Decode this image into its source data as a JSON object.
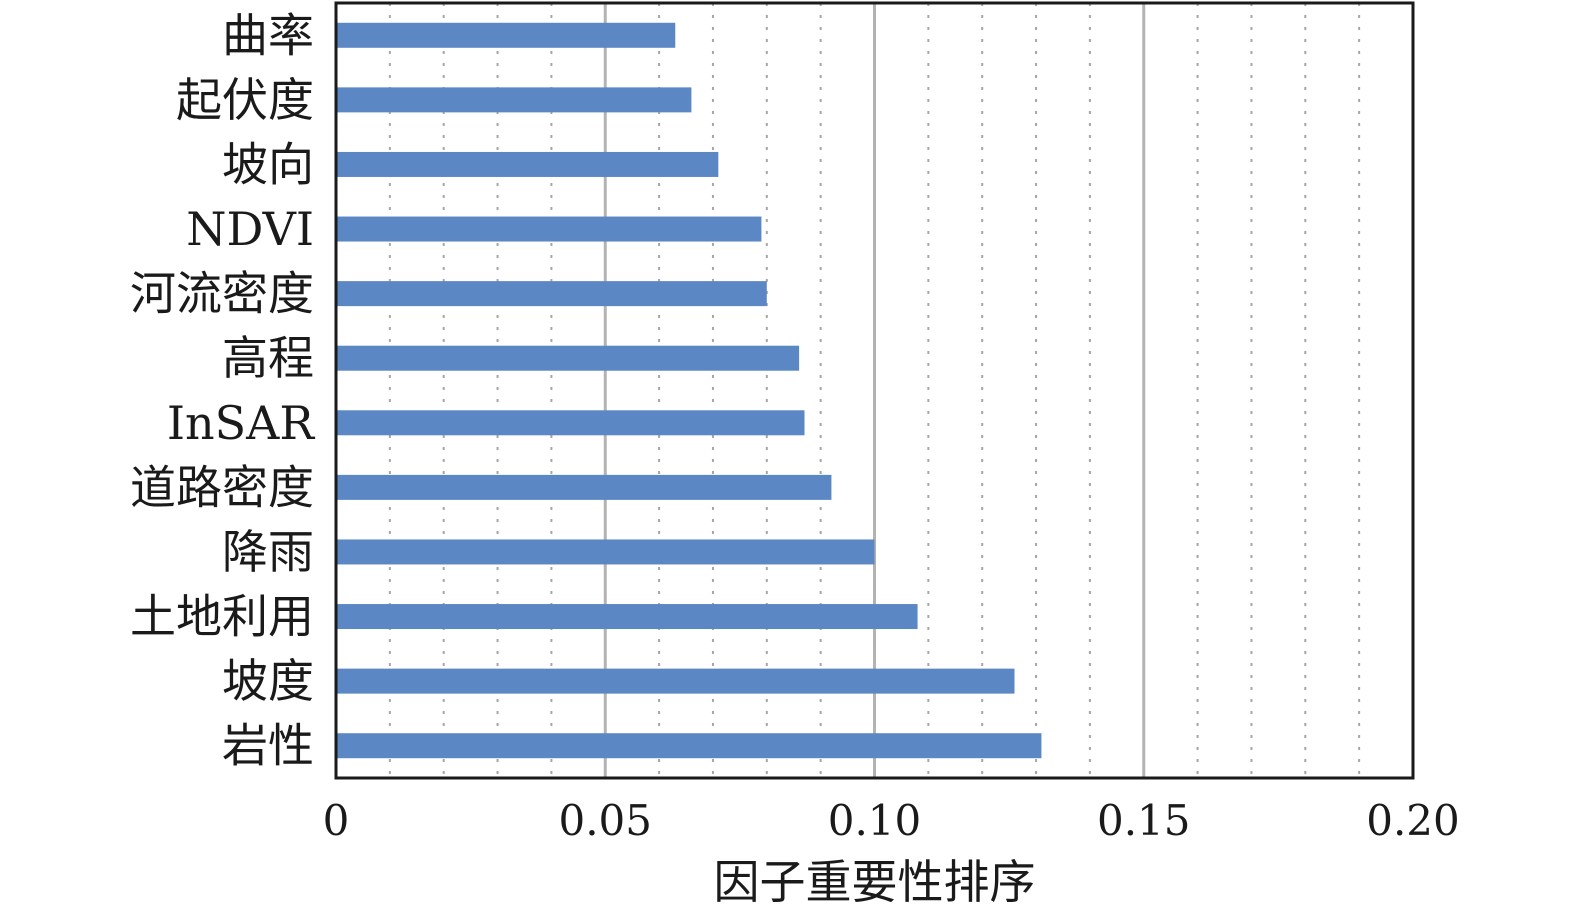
{
  "chart_data": {
    "type": "bar",
    "orientation": "horizontal",
    "title": "",
    "xlabel": "因子重要性排序",
    "ylabel": "",
    "xlim": [
      0,
      0.2
    ],
    "x_ticks": [
      "0",
      "0.05",
      "0.10",
      "0.15",
      "0.20"
    ],
    "x_tick_values": [
      0,
      0.05,
      0.1,
      0.15,
      0.2
    ],
    "minor_grid_step": 0.01,
    "grid": "vertical",
    "bar_color": "#5B87C5",
    "categories": [
      "曲率",
      "起伏度",
      "坡向",
      "NDVI",
      "河流密度",
      "高程",
      "InSAR",
      "道路密度",
      "降雨",
      "土地利用",
      "坡度",
      "岩性"
    ],
    "values": [
      0.063,
      0.066,
      0.071,
      0.079,
      0.08,
      0.086,
      0.087,
      0.092,
      0.1,
      0.108,
      0.126,
      0.131
    ]
  }
}
